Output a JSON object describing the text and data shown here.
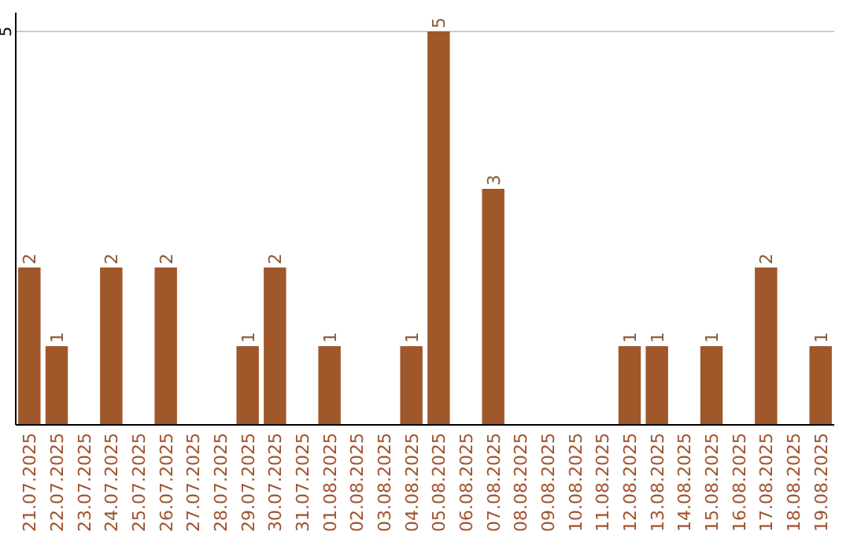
{
  "chart_data": {
    "type": "bar",
    "categories": [
      "21.07.2025",
      "22.07.2025",
      "23.07.2025",
      "24.07.2025",
      "25.07.2025",
      "26.07.2025",
      "27.07.2025",
      "28.07.2025",
      "29.07.2025",
      "30.07.2025",
      "31.07.2025",
      "01.08.2025",
      "02.08.2025",
      "03.08.2025",
      "04.08.2025",
      "05.08.2025",
      "06.08.2025",
      "07.08.2025",
      "08.08.2025",
      "09.08.2025",
      "10.08.2025",
      "11.08.2025",
      "12.08.2025",
      "13.08.2025",
      "14.08.2025",
      "15.08.2025",
      "16.08.2025",
      "17.08.2025",
      "18.08.2025",
      "19.08.2025"
    ],
    "values": [
      2,
      1,
      0,
      2,
      0,
      2,
      0,
      0,
      1,
      2,
      0,
      1,
      0,
      0,
      1,
      5,
      0,
      3,
      0,
      0,
      0,
      0,
      1,
      1,
      0,
      1,
      0,
      2,
      0,
      1
    ],
    "value_labels": [
      "2",
      "1",
      null,
      "2",
      null,
      "2",
      null,
      null,
      "1",
      "2",
      null,
      "1",
      null,
      null,
      "1",
      "5",
      null,
      "3",
      null,
      null,
      null,
      null,
      "1",
      "1",
      null,
      "1",
      null,
      "2",
      null,
      "1"
    ],
    "color": "#a0572a",
    "ylim": [
      0,
      5
    ],
    "yticks": [
      5
    ],
    "ref_lines": [
      {
        "axis": "y",
        "value": 5,
        "color": "#cccccc"
      }
    ]
  }
}
